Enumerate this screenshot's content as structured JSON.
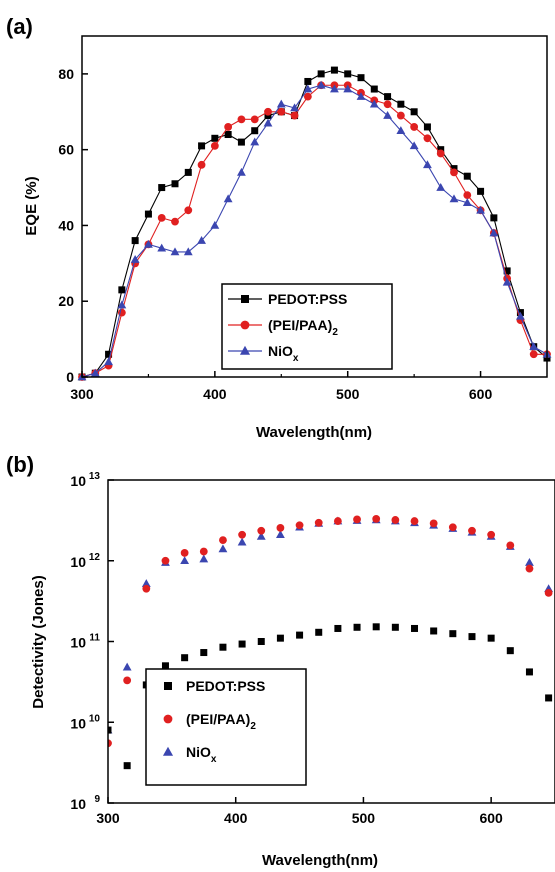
{
  "panels": [
    {
      "label": "(a)"
    },
    {
      "label": "(b)"
    }
  ],
  "chart_data": [
    {
      "type": "line",
      "xlabel": "Wavelength(nm)",
      "ylabel": "EQE (%)",
      "xlim": [
        300,
        650
      ],
      "ylim": [
        0,
        90
      ],
      "xticks": [
        "300",
        "400",
        "500",
        "600"
      ],
      "yticks": [
        "0",
        "20",
        "40",
        "60",
        "80"
      ],
      "legend_position": "bottom-center",
      "x": [
        300,
        310,
        320,
        330,
        340,
        350,
        360,
        370,
        380,
        390,
        400,
        410,
        420,
        430,
        440,
        450,
        460,
        470,
        480,
        490,
        500,
        510,
        520,
        530,
        540,
        550,
        560,
        570,
        580,
        590,
        600,
        610,
        620,
        630,
        640,
        650
      ],
      "series": [
        {
          "name": "PEDOT:PSS",
          "color": "#000000",
          "marker": "square",
          "values": [
            0,
            1,
            6,
            23,
            36,
            43,
            50,
            51,
            54,
            61,
            63,
            64,
            62,
            65,
            69,
            70,
            69,
            78,
            80,
            81,
            80,
            79,
            76,
            74,
            72,
            70,
            66,
            60,
            55,
            53,
            49,
            42,
            28,
            17,
            8,
            5
          ]
        },
        {
          "name": "(PEI/PAA)",
          "subscript": "2",
          "color": "#e02020",
          "marker": "circle",
          "values": [
            0,
            1,
            3,
            17,
            30,
            35,
            42,
            41,
            44,
            56,
            61,
            66,
            68,
            68,
            70,
            70,
            69,
            74,
            77,
            77,
            77,
            75,
            73,
            72,
            69,
            66,
            63,
            59,
            54,
            48,
            44,
            38,
            26,
            15,
            6,
            6
          ]
        },
        {
          "name": "NiO",
          "subscript": "x",
          "color": "#3b46b0",
          "marker": "triangle",
          "values": [
            0,
            1,
            4,
            19,
            31,
            35,
            34,
            33,
            33,
            36,
            40,
            47,
            54,
            62,
            67,
            72,
            71,
            76,
            77,
            76,
            76,
            74,
            72,
            69,
            65,
            61,
            56,
            50,
            47,
            46,
            44,
            38,
            25,
            16,
            8,
            6
          ]
        }
      ]
    },
    {
      "type": "scatter",
      "xlabel": "Wavelength(nm)",
      "ylabel": "Detectivity (Jones)",
      "yscale": "log",
      "xlim": [
        300,
        650
      ],
      "ylim": [
        1000000000.0,
        10000000000000.0
      ],
      "xticks": [
        "300",
        "400",
        "500",
        "600"
      ],
      "yticks": [
        {
          "base": "10",
          "exp": "9"
        },
        {
          "base": "10",
          "exp": "10"
        },
        {
          "base": "10",
          "exp": "11"
        },
        {
          "base": "10",
          "exp": "12"
        },
        {
          "base": "10",
          "exp": "13"
        }
      ],
      "legend_position": "bottom-left",
      "x": [
        300,
        315,
        330,
        345,
        360,
        375,
        390,
        405,
        420,
        435,
        450,
        465,
        480,
        495,
        510,
        525,
        540,
        555,
        570,
        585,
        600,
        615,
        630,
        645
      ],
      "series": [
        {
          "name": "PEDOT:PSS",
          "color": "#000000",
          "marker": "square",
          "values": [
            8000000000.0,
            2900000000.0,
            29000000000.0,
            50000000000.0,
            63000000000.0,
            73000000000.0,
            85000000000.0,
            93000000000.0,
            100000000000.0,
            110000000000.0,
            120000000000.0,
            130000000000.0,
            145000000000.0,
            150000000000.0,
            152000000000.0,
            150000000000.0,
            145000000000.0,
            135000000000.0,
            125000000000.0,
            115000000000.0,
            110000000000.0,
            77000000000.0,
            42000000000.0,
            20000000000.0
          ]
        },
        {
          "name": "(PEI/PAA)",
          "subscript": "2",
          "color": "#e02020",
          "marker": "circle",
          "values": [
            5500000000.0,
            33000000000.0,
            450000000000.0,
            1000000000000.0,
            1250000000000.0,
            1300000000000.0,
            1800000000000.0,
            2100000000000.0,
            2350000000000.0,
            2550000000000.0,
            2750000000000.0,
            2950000000000.0,
            3100000000000.0,
            3250000000000.0,
            3300000000000.0,
            3200000000000.0,
            3100000000000.0,
            2900000000000.0,
            2600000000000.0,
            2350000000000.0,
            2100000000000.0,
            1550000000000.0,
            800000000000.0,
            400000000000.0
          ]
        },
        {
          "name": "NiO",
          "subscript": "x",
          "color": "#3b46b0",
          "marker": "triangle",
          "values": [
            8000000000.0,
            48000000000.0,
            520000000000.0,
            950000000000.0,
            1000000000000.0,
            1050000000000.0,
            1400000000000.0,
            1700000000000.0,
            2000000000000.0,
            2100000000000.0,
            2600000000000.0,
            2900000000000.0,
            3100000000000.0,
            3150000000000.0,
            3200000000000.0,
            3100000000000.0,
            2950000000000.0,
            2750000000000.0,
            2500000000000.0,
            2250000000000.0,
            2000000000000.0,
            1500000000000.0,
            950000000000.0,
            450000000000.0
          ]
        }
      ]
    }
  ]
}
